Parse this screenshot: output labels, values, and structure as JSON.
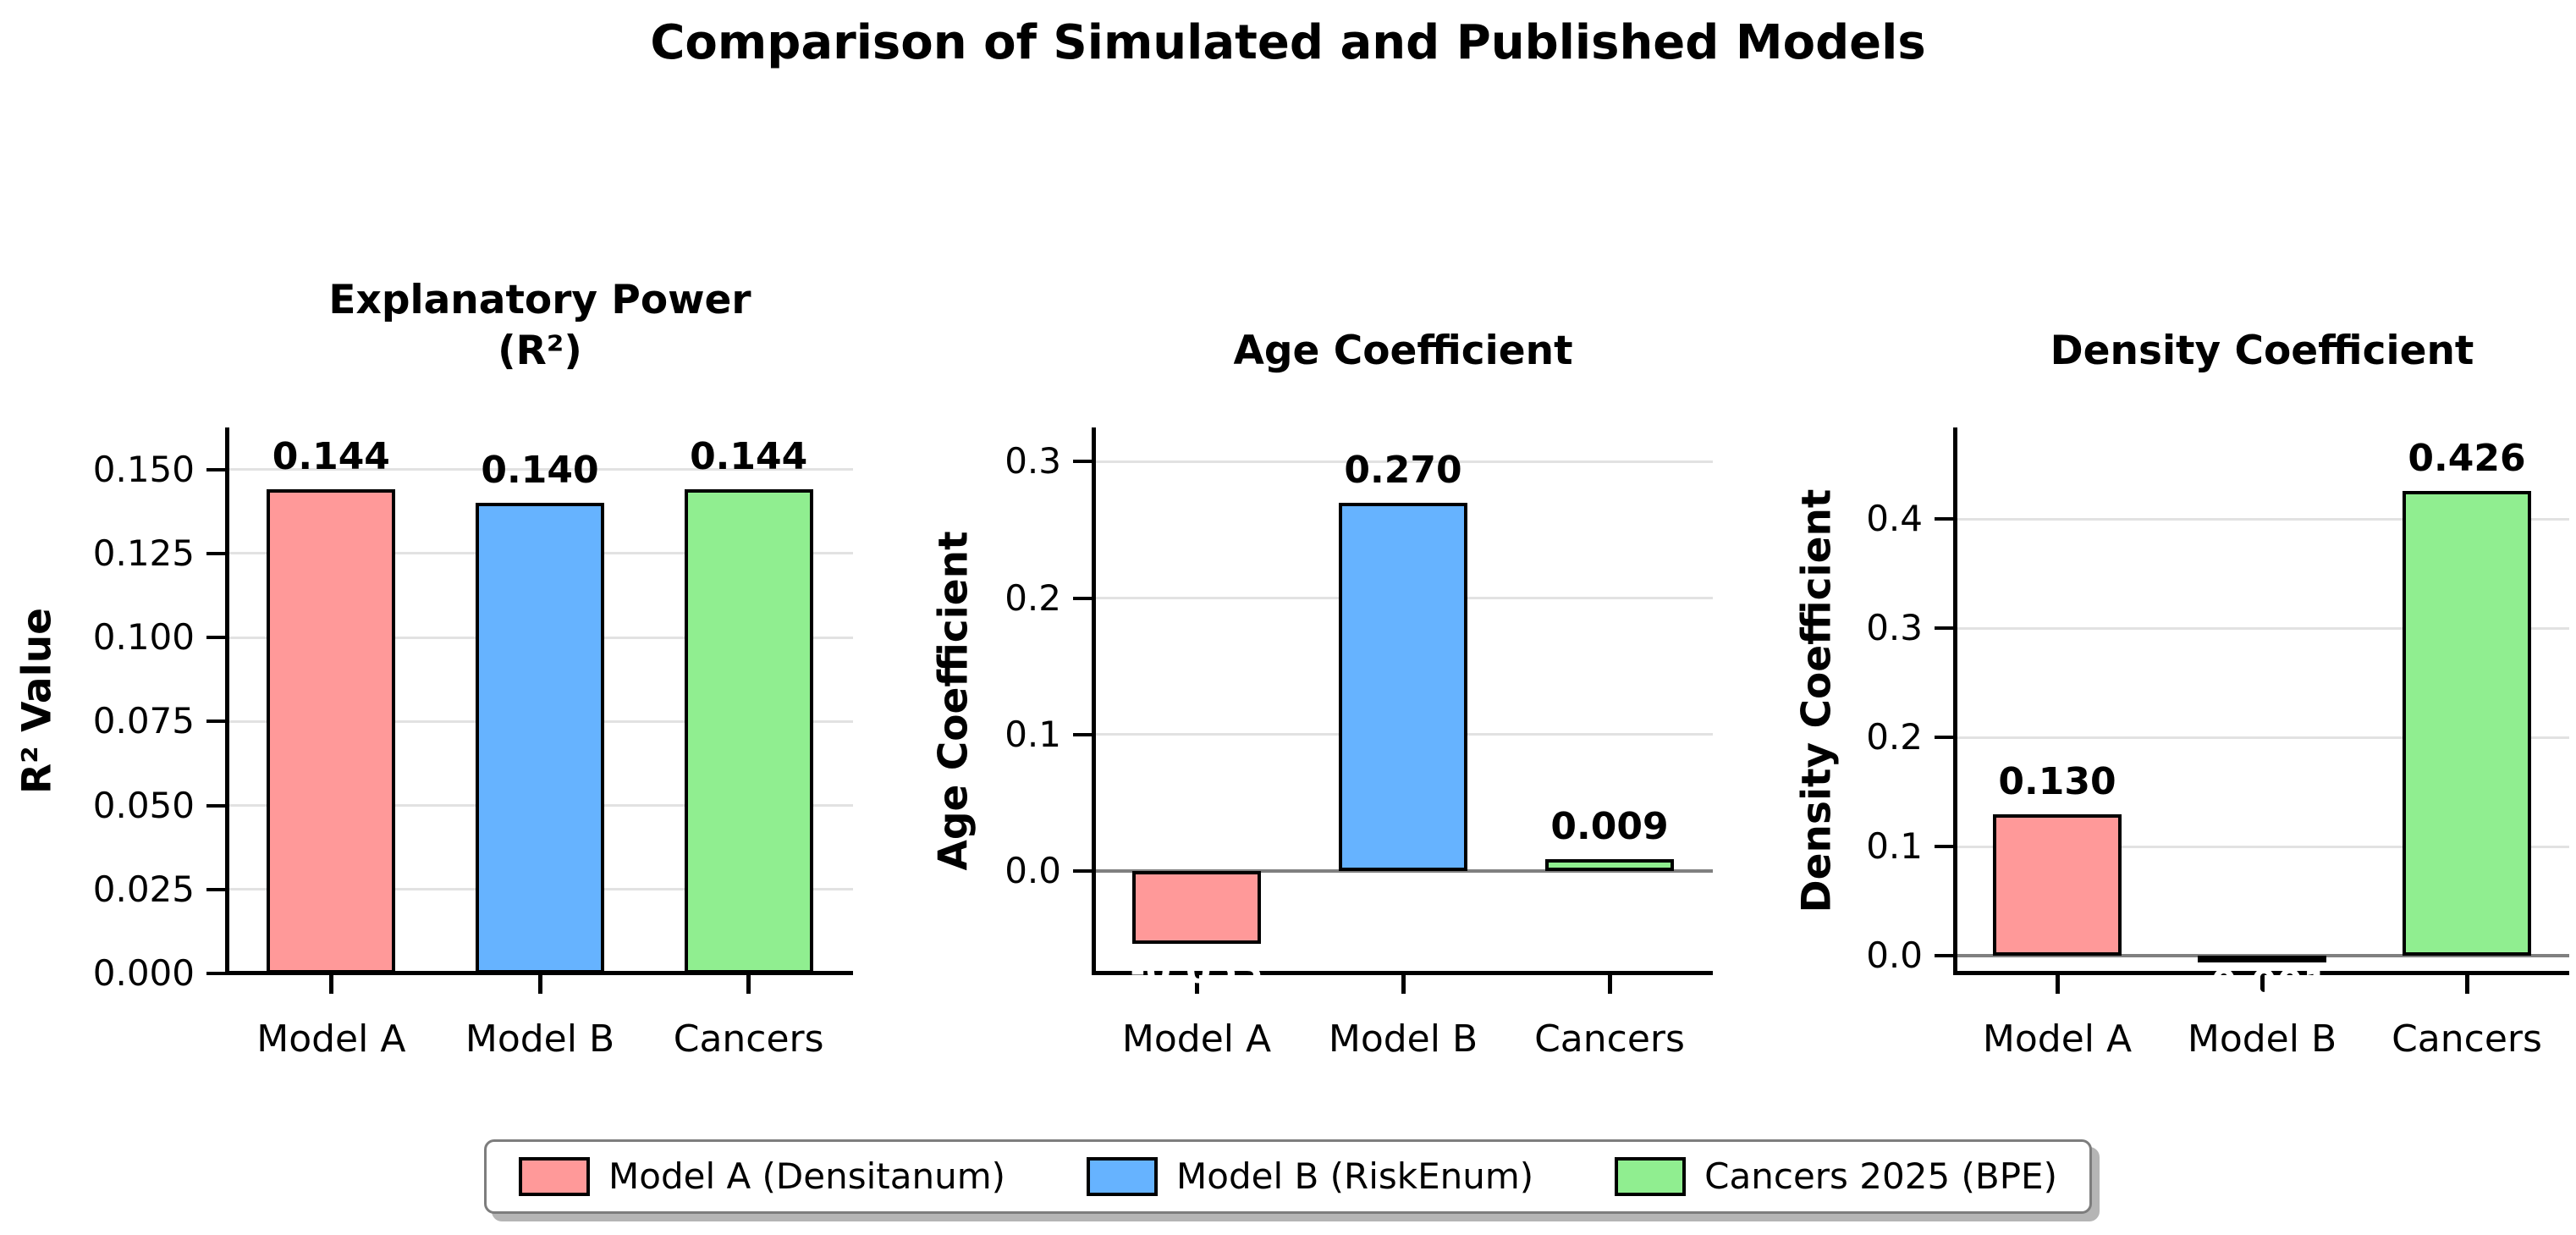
{
  "suptitle": "Comparison of Simulated and Published Models",
  "categories": [
    "Model A",
    "Model B",
    "Cancers"
  ],
  "bar_colors": [
    "#FF9999",
    "#66B3FF",
    "#90EE90"
  ],
  "style_colors": {
    "bar_edge": "#000000",
    "grid": "#E2E2E2",
    "zero_line": "#808080",
    "spine": "#000000",
    "legend_border": "#7D7D7D"
  },
  "legend": {
    "position": "bottom-center",
    "items": [
      {
        "label": "Model A (Densitanum)",
        "color": "#FF9999"
      },
      {
        "label": "Model B (RiskEnum)",
        "color": "#66B3FF"
      },
      {
        "label": "Cancers 2025 (BPE)",
        "color": "#90EE90"
      }
    ]
  },
  "chart_data": [
    {
      "type": "bar",
      "title_lines": [
        "Explanatory Power",
        "(R²)"
      ],
      "ylabel": "R² Value",
      "xlabel": "",
      "categories": [
        "Model A",
        "Model B",
        "Cancers"
      ],
      "values": [
        0.144,
        0.14,
        0.144
      ],
      "bar_labels": [
        "0.144",
        "0.140",
        "0.144"
      ],
      "bar_label_colors": [
        "#000000",
        "#000000",
        "#000000"
      ],
      "yticks": [
        0.0,
        0.025,
        0.05,
        0.075,
        0.1,
        0.125,
        0.15
      ],
      "ytick_labels": [
        "0.000",
        "0.025",
        "0.050",
        "0.075",
        "0.100",
        "0.125",
        "0.150"
      ],
      "ylim": [
        0.0,
        0.1625
      ],
      "grid": true,
      "zero_line": false
    },
    {
      "type": "bar",
      "title_lines": [
        "Age Coefficient"
      ],
      "ylabel": "Age Coefficient",
      "xlabel": "",
      "categories": [
        "Model A",
        "Model B",
        "Cancers"
      ],
      "values": [
        -0.053,
        0.27,
        0.009
      ],
      "bar_labels": [
        "-0.053",
        "0.270",
        "0.009"
      ],
      "bar_label_colors": [
        "#FFFFFF",
        "#000000",
        "#000000"
      ],
      "yticks": [
        0.0,
        0.1,
        0.2,
        0.3
      ],
      "ytick_labels": [
        "0.0",
        "0.1",
        "0.2",
        "0.3"
      ],
      "ylim": [
        -0.075,
        0.325
      ],
      "grid": true,
      "zero_line": true
    },
    {
      "type": "bar",
      "title_lines": [
        "Density Coefficient"
      ],
      "ylabel": "Density Coefficient",
      "xlabel": "",
      "categories": [
        "Model A",
        "Model B",
        "Cancers"
      ],
      "values": [
        0.13,
        -0.001,
        0.426
      ],
      "bar_labels": [
        "0.130",
        "-0.001",
        "0.426"
      ],
      "bar_label_colors": [
        "#000000",
        "#FFFFFF",
        "#000000"
      ],
      "yticks": [
        0.0,
        0.1,
        0.2,
        0.3,
        0.4
      ],
      "ytick_labels": [
        "0.0",
        "0.1",
        "0.2",
        "0.3",
        "0.4"
      ],
      "ylim": [
        -0.016,
        0.484
      ],
      "grid": true,
      "zero_line": true
    }
  ]
}
